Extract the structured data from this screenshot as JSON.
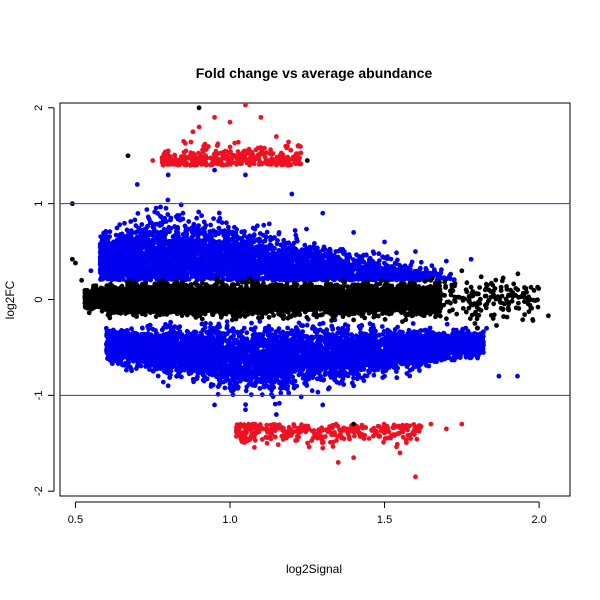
{
  "chart_data": {
    "type": "scatter",
    "title": "Fold change vs average abundance",
    "xlabel": "log2Signal",
    "ylabel": "log2FC",
    "xlim": [
      0.45,
      2.1
    ],
    "ylim": [
      -2.05,
      2.05
    ],
    "x_ticks": [
      "0.5",
      "1.0",
      "1.5",
      "2.0"
    ],
    "y_ticks": [
      "-2",
      "-1",
      "0",
      "1",
      "2"
    ],
    "reference_lines": [
      {
        "axis": "y",
        "value": 1,
        "color": "#3333cc"
      },
      {
        "axis": "y",
        "value": -1,
        "color": "#3333cc"
      }
    ],
    "grid": false,
    "legend": "none",
    "colors": {
      "unchanged": "#000000",
      "moderate": "#0000ee",
      "strong": "#ee1122"
    },
    "series": [
      {
        "color_key": "unchanged",
        "points": [
          [
            0.49,
            1.0
          ],
          [
            0.49,
            0.42
          ],
          [
            0.5,
            0.38
          ],
          [
            0.52,
            0.2
          ],
          [
            0.55,
            0.05
          ],
          [
            0.6,
            -0.05
          ],
          [
            0.68,
            0.15
          ],
          [
            0.75,
            -0.1
          ],
          [
            0.85,
            0.08
          ],
          [
            0.95,
            -0.05
          ],
          [
            1.05,
            0.1
          ],
          [
            1.15,
            -0.08
          ],
          [
            1.25,
            0.05
          ],
          [
            1.35,
            -0.02
          ],
          [
            1.45,
            0.1
          ],
          [
            1.55,
            0.05
          ],
          [
            1.6,
            -0.1
          ],
          [
            1.65,
            0.2
          ],
          [
            1.7,
            -0.2
          ],
          [
            1.75,
            0.3
          ],
          [
            1.8,
            -0.3
          ],
          [
            1.85,
            0.15
          ],
          [
            1.9,
            -0.1
          ],
          [
            1.95,
            0.05
          ],
          [
            2.03,
            -0.17
          ],
          [
            1.98,
            -0.22
          ],
          [
            0.9,
            2.0
          ],
          [
            1.25,
            1.45
          ],
          [
            0.67,
            1.5
          ],
          [
            1.4,
            -1.3
          ],
          [
            1.6,
            0.0
          ],
          [
            1.58,
            0.15
          ],
          [
            1.52,
            -0.1
          ]
        ]
      },
      {
        "color_key": "moderate",
        "points": [
          [
            0.55,
            0.3
          ],
          [
            0.6,
            0.7
          ],
          [
            0.7,
            1.2
          ],
          [
            0.8,
            1.3
          ],
          [
            0.95,
            1.35
          ],
          [
            1.05,
            1.3
          ],
          [
            1.2,
            1.1
          ],
          [
            1.3,
            0.9
          ],
          [
            1.4,
            0.7
          ],
          [
            1.5,
            0.6
          ],
          [
            1.6,
            0.5
          ],
          [
            1.7,
            0.4
          ],
          [
            1.78,
            0.42
          ],
          [
            0.6,
            -0.3
          ],
          [
            0.7,
            -0.6
          ],
          [
            0.8,
            -0.9
          ],
          [
            0.95,
            -1.1
          ],
          [
            1.05,
            -1.15
          ],
          [
            1.15,
            -1.2
          ],
          [
            1.3,
            -1.1
          ],
          [
            1.4,
            -0.9
          ],
          [
            1.5,
            -0.8
          ],
          [
            1.6,
            -0.7
          ],
          [
            1.7,
            -0.6
          ],
          [
            1.8,
            -0.55
          ],
          [
            1.87,
            -0.8
          ],
          [
            1.93,
            -0.8
          ],
          [
            1.83,
            -0.3
          ]
        ]
      },
      {
        "color_key": "strong",
        "points": [
          [
            0.75,
            1.45
          ],
          [
            0.8,
            1.55
          ],
          [
            0.85,
            1.65
          ],
          [
            0.88,
            1.75
          ],
          [
            0.9,
            1.8
          ],
          [
            0.95,
            1.9
          ],
          [
            1.0,
            1.85
          ],
          [
            1.05,
            2.03
          ],
          [
            1.1,
            1.9
          ],
          [
            1.15,
            1.7
          ],
          [
            1.22,
            1.6
          ],
          [
            1.05,
            -1.35
          ],
          [
            1.12,
            -1.5
          ],
          [
            1.2,
            -1.4
          ],
          [
            1.3,
            -1.55
          ],
          [
            1.35,
            -1.7
          ],
          [
            1.4,
            -1.65
          ],
          [
            1.45,
            -1.45
          ],
          [
            1.55,
            -1.6
          ],
          [
            1.6,
            -1.85
          ],
          [
            1.65,
            -1.3
          ],
          [
            1.7,
            -1.35
          ],
          [
            1.75,
            -1.3
          ]
        ]
      }
    ]
  }
}
